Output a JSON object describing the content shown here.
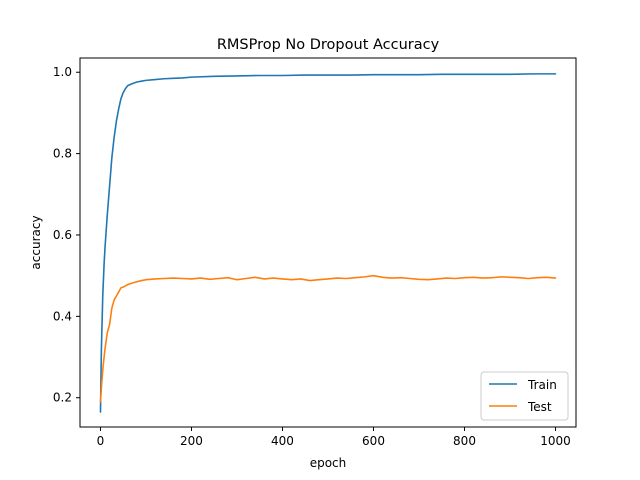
{
  "chart_data": {
    "type": "line",
    "title": "RMSProp No Dropout Accuracy",
    "xlabel": "epoch",
    "ylabel": "accuracy",
    "xlim": [
      -45,
      1045
    ],
    "ylim": [
      0.128,
      1.035
    ],
    "xticks": [
      0,
      200,
      400,
      600,
      800,
      1000
    ],
    "yticks": [
      0.2,
      0.4,
      0.6,
      0.8,
      1.0
    ],
    "xtick_labels": [
      "0",
      "200",
      "400",
      "600",
      "800",
      "1000"
    ],
    "ytick_labels": [
      "0.2",
      "0.4",
      "0.6",
      "0.8",
      "1.0"
    ],
    "grid": false,
    "legend_position": "lower right",
    "series": [
      {
        "name": "Train",
        "color": "#1f77b4",
        "x": [
          0,
          2,
          5,
          8,
          10,
          15,
          20,
          25,
          30,
          35,
          40,
          45,
          50,
          55,
          60,
          70,
          80,
          90,
          100,
          120,
          140,
          160,
          180,
          200,
          250,
          300,
          350,
          400,
          450,
          500,
          550,
          600,
          650,
          700,
          750,
          800,
          850,
          900,
          950,
          1000
        ],
        "y": [
          0.165,
          0.32,
          0.45,
          0.53,
          0.57,
          0.65,
          0.72,
          0.79,
          0.84,
          0.88,
          0.91,
          0.935,
          0.95,
          0.96,
          0.967,
          0.972,
          0.976,
          0.978,
          0.98,
          0.982,
          0.984,
          0.985,
          0.986,
          0.988,
          0.99,
          0.991,
          0.992,
          0.992,
          0.993,
          0.993,
          0.993,
          0.994,
          0.994,
          0.994,
          0.995,
          0.995,
          0.995,
          0.995,
          0.996,
          0.996
        ]
      },
      {
        "name": "Test",
        "color": "#ff7f0e",
        "x": [
          0,
          3,
          6,
          10,
          15,
          20,
          25,
          30,
          35,
          40,
          45,
          50,
          60,
          70,
          80,
          90,
          100,
          120,
          140,
          160,
          180,
          200,
          220,
          240,
          260,
          280,
          300,
          320,
          340,
          360,
          380,
          400,
          420,
          440,
          460,
          480,
          500,
          520,
          540,
          560,
          580,
          600,
          620,
          640,
          660,
          680,
          700,
          720,
          740,
          760,
          780,
          800,
          820,
          840,
          860,
          880,
          900,
          920,
          940,
          960,
          980,
          1000
        ],
        "y": [
          0.19,
          0.24,
          0.28,
          0.32,
          0.36,
          0.38,
          0.42,
          0.44,
          0.45,
          0.46,
          0.47,
          0.472,
          0.478,
          0.482,
          0.485,
          0.488,
          0.49,
          0.492,
          0.493,
          0.494,
          0.493,
          0.492,
          0.494,
          0.491,
          0.493,
          0.495,
          0.49,
          0.493,
          0.496,
          0.492,
          0.494,
          0.492,
          0.49,
          0.492,
          0.488,
          0.49,
          0.492,
          0.494,
          0.493,
          0.495,
          0.497,
          0.5,
          0.496,
          0.494,
          0.495,
          0.493,
          0.491,
          0.49,
          0.492,
          0.494,
          0.493,
          0.495,
          0.496,
          0.494,
          0.495,
          0.497,
          0.496,
          0.495,
          0.493,
          0.495,
          0.496,
          0.494
        ]
      }
    ]
  }
}
